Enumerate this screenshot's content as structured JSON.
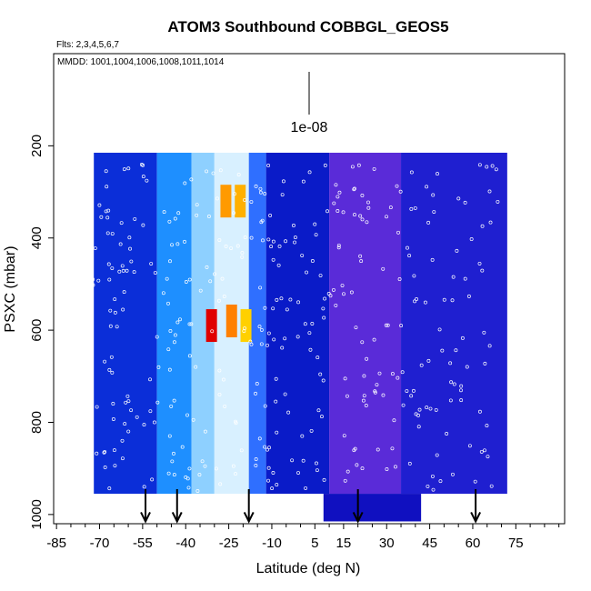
{
  "chart_data": {
    "type": "heatmap",
    "title": "ATOM3 Southbound COBBGL_GEOS5",
    "flights_note": "Flts: 2,3,4,5,6,7",
    "dates_note": "MMDD: 1001,1004,1006,1008,1011,1014",
    "scale_label": "1e-08",
    "xlabel": "Latitude (deg N)",
    "ylabel": "PSXC (mbar)",
    "xlim": [
      -86,
      92
    ],
    "ylim": [
      1020,
      0
    ],
    "x_ticks": [
      "-85",
      "-70",
      "-55",
      "-40",
      "-25",
      "-10",
      "5",
      "15",
      "30",
      "45",
      "60",
      "75"
    ],
    "x_tick_values": [
      -85,
      -70,
      -55,
      -40,
      -25,
      -10,
      5,
      15,
      30,
      45,
      60,
      75
    ],
    "y_ticks": [
      "200",
      "400",
      "600",
      "800",
      "1000"
    ],
    "y_tick_values": [
      200,
      400,
      600,
      800,
      1000
    ],
    "arrow_latitudes": [
      -54,
      -43,
      -18,
      20,
      61
    ],
    "column_bands": [
      {
        "lat": [
          -72,
          -50
        ],
        "color": "#0b2ed8"
      },
      {
        "lat": [
          -50,
          -38
        ],
        "color": "#1e8fff"
      },
      {
        "lat": [
          -38,
          -30
        ],
        "color": "#8ed0ff"
      },
      {
        "lat": [
          -30,
          -18
        ],
        "color": "#d8f0ff"
      },
      {
        "lat": [
          -18,
          -12
        ],
        "color": "#2f6fff"
      },
      {
        "lat": [
          -12,
          10
        ],
        "color": "#0a1bc8"
      },
      {
        "lat": [
          10,
          35
        ],
        "color": "#5a2bd8"
      },
      {
        "lat": [
          35,
          72
        ],
        "color": "#1f1fd0"
      }
    ],
    "hotspots": [
      {
        "lat": -26,
        "p": 320,
        "color": "#ff9a00"
      },
      {
        "lat": -21,
        "p": 320,
        "color": "#ffb000"
      },
      {
        "lat": -31,
        "p": 590,
        "color": "#e00000"
      },
      {
        "lat": -24,
        "p": 580,
        "color": "#ff8000"
      },
      {
        "lat": -19,
        "p": 590,
        "color": "#ffd000"
      }
    ],
    "colors": {
      "low": "#1010c0",
      "mid": "#7fd4ff",
      "high": "#e00000",
      "purple": "#7a2ee0",
      "points": "#ffffff"
    }
  }
}
